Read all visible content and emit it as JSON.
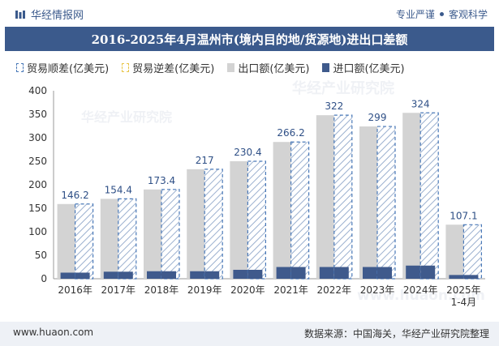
{
  "header": {
    "brand": "华经情报网",
    "tagline_left": "专业严谨",
    "tagline_right": "客观科学"
  },
  "title": "2016-2025年4月温州市(境内目的地/货源地)进出口差额",
  "legend": {
    "surplus": "贸易顺差(亿美元)",
    "deficit": "贸易逆差(亿美元)",
    "export": "出口额(亿美元)",
    "import": "进口额(亿美元)"
  },
  "watermarks": [
    "华经产业研究院",
    "华经产业研究院",
    "www.huaon.com"
  ],
  "colors": {
    "export": "#d3d3d3",
    "import": "#3f5a8c",
    "surplus_border": "#4a79b8",
    "surplus_hatch": "#9bb0cf",
    "label": "#2e4f86",
    "title_bg": "#3b5a8c"
  },
  "chart_data": {
    "type": "bar",
    "categories": [
      "2016年",
      "2017年",
      "2018年",
      "2019年",
      "2020年",
      "2021年",
      "2022年",
      "2023年",
      "2024年",
      "2025年\n1-4月"
    ],
    "series": [
      {
        "name": "出口额(亿美元)",
        "values": [
          159,
          170,
          190,
          233,
          250,
          291,
          348,
          324,
          353,
          115
        ]
      },
      {
        "name": "进口额(亿美元)",
        "values": [
          13,
          15,
          16,
          16,
          19,
          25,
          25,
          25,
          28,
          8
        ]
      },
      {
        "name": "贸易顺差(亿美元)",
        "values": [
          146.2,
          154.4,
          173.4,
          217,
          230.4,
          266.2,
          322,
          299,
          324,
          107.1
        ]
      }
    ],
    "data_labels": [
      "146.2",
      "154.4",
      "173.4",
      "217",
      "230.4",
      "266.2",
      "322",
      "299",
      "324",
      "107.1"
    ],
    "yticks": [
      0,
      50,
      100,
      150,
      200,
      250,
      300,
      350,
      400
    ],
    "ylim": [
      0,
      400
    ],
    "xlabel": "",
    "ylabel": ""
  },
  "footer": {
    "website": "www.huaon.com",
    "source": "数据来源：中国海关，华经产业研究院整理"
  }
}
